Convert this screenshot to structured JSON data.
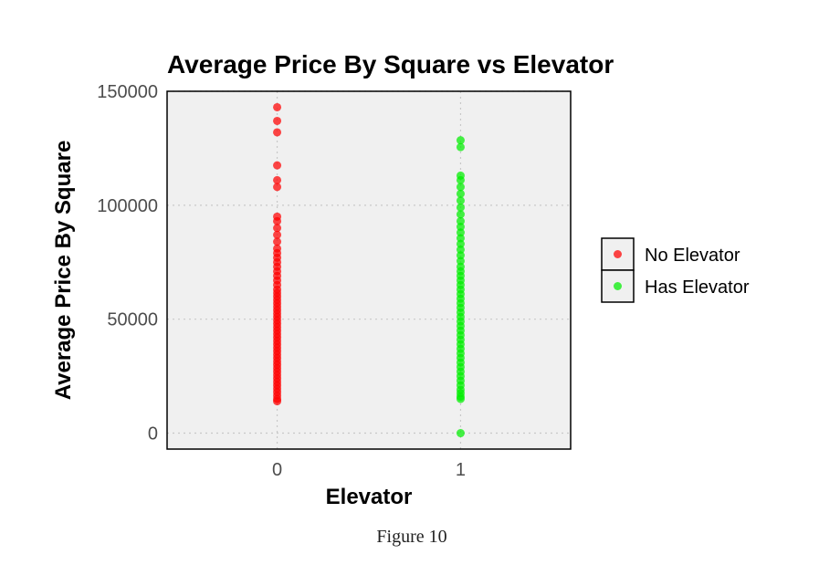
{
  "chart_data": {
    "type": "scatter",
    "title": "Average Price By Square vs Elevator",
    "xlabel": "Elevator",
    "ylabel": "Average Price By Square",
    "x_ticks": [
      "0",
      "1"
    ],
    "y_ticks": [
      "0",
      "50000",
      "100000",
      "150000"
    ],
    "xlim": [
      -0.6,
      1.6
    ],
    "ylim": [
      -7000,
      150000
    ],
    "grid": true,
    "legend_position": "right",
    "series": [
      {
        "name": "No Elevator",
        "color": "#ff0000",
        "x": 0,
        "values": [
          143000,
          137000,
          132000,
          117500,
          111000,
          108000,
          95000,
          93000,
          90000,
          87000,
          84000,
          81000,
          79000,
          77000,
          75000,
          73000,
          71000,
          69000,
          67000,
          65000,
          63000,
          61500,
          60000,
          58500,
          57000,
          55500,
          54000,
          52500,
          51000,
          49500,
          48000,
          46500,
          45000,
          43500,
          42000,
          40500,
          39000,
          37500,
          36000,
          34500,
          33000,
          31500,
          30000,
          28500,
          27000,
          25500,
          24000,
          22500,
          21000,
          19500,
          18000,
          16500,
          15000,
          14000
        ]
      },
      {
        "name": "Has Elevator",
        "color": "#00ee00",
        "x": 1,
        "values": [
          128500,
          125500,
          113000,
          111000,
          108000,
          105000,
          102000,
          99000,
          96000,
          93000,
          90500,
          88000,
          85500,
          83000,
          80500,
          78000,
          75500,
          73000,
          71000,
          69000,
          67000,
          65000,
          63000,
          61000,
          59000,
          57000,
          55000,
          53000,
          51000,
          49000,
          47000,
          45000,
          43000,
          41000,
          39000,
          37000,
          35000,
          33000,
          31000,
          29000,
          27000,
          25000,
          23000,
          21000,
          19000,
          17500,
          16000,
          15000,
          0
        ]
      }
    ]
  },
  "caption": "Figure 10"
}
